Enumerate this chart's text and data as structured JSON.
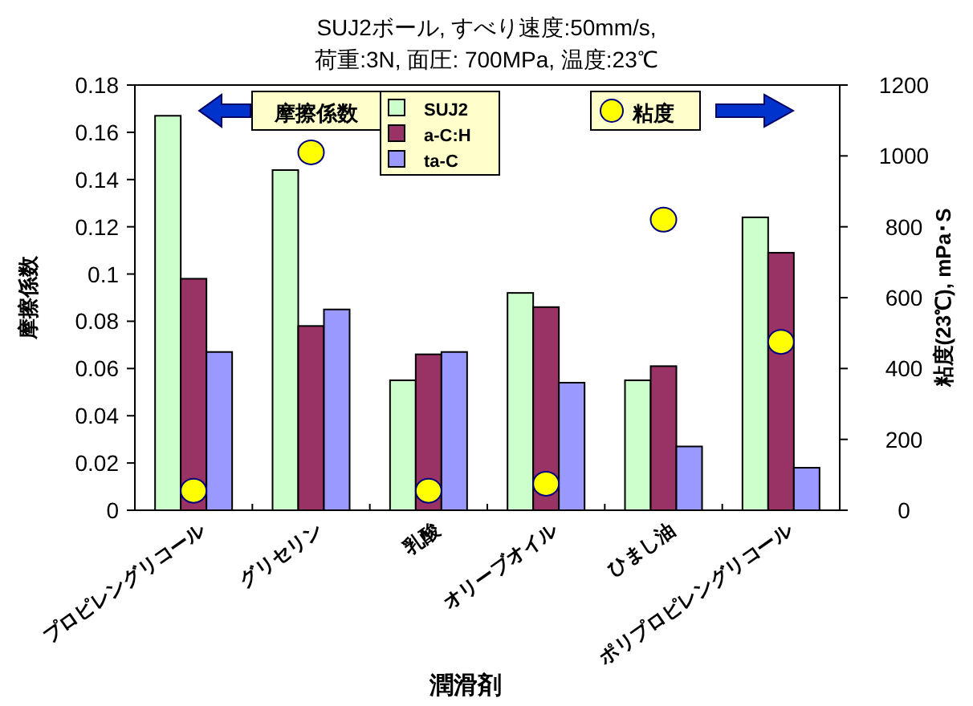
{
  "chart_data": {
    "type": "bar",
    "title": "SUJ2ボール, すべり速度:50mm/s,",
    "subtitle": "荷重:3N, 面圧: 700MPa, 温度:23℃",
    "xlabel": "潤滑剤",
    "ylabel": "摩擦係数",
    "y2label": "粘度(23℃), mPa･S",
    "legend_title": "摩擦係数",
    "categories": [
      "プロピレングリコール",
      "グリセリン",
      "乳酸",
      "オリーブオイル",
      "ひまし油",
      "ポリプロピレングリコール"
    ],
    "series": [
      {
        "name": "SUJ2",
        "color": "#ccffcc",
        "values": [
          0.167,
          0.144,
          0.055,
          0.092,
          0.055,
          0.124
        ]
      },
      {
        "name": "a-C:H",
        "color": "#993366",
        "values": [
          0.098,
          0.078,
          0.066,
          0.086,
          0.061,
          0.109
        ]
      },
      {
        "name": "ta-C",
        "color": "#9999ff",
        "values": [
          0.067,
          0.085,
          0.067,
          0.054,
          0.027,
          0.018
        ]
      },
      {
        "name": "粘度",
        "type": "scatter",
        "axis": "y2",
        "marker": "circle",
        "color": "#ffff00",
        "values": [
          55,
          1010,
          55,
          75,
          820,
          475
        ]
      }
    ],
    "ylim": [
      0,
      0.18
    ],
    "yticks": [
      0,
      0.02,
      0.04,
      0.06,
      0.08,
      0.1,
      0.12,
      0.14,
      0.16,
      0.18
    ],
    "y2lim": [
      0,
      1200
    ],
    "y2ticks": [
      0,
      200,
      400,
      600,
      800,
      1000,
      1200
    ],
    "legend": "top"
  }
}
